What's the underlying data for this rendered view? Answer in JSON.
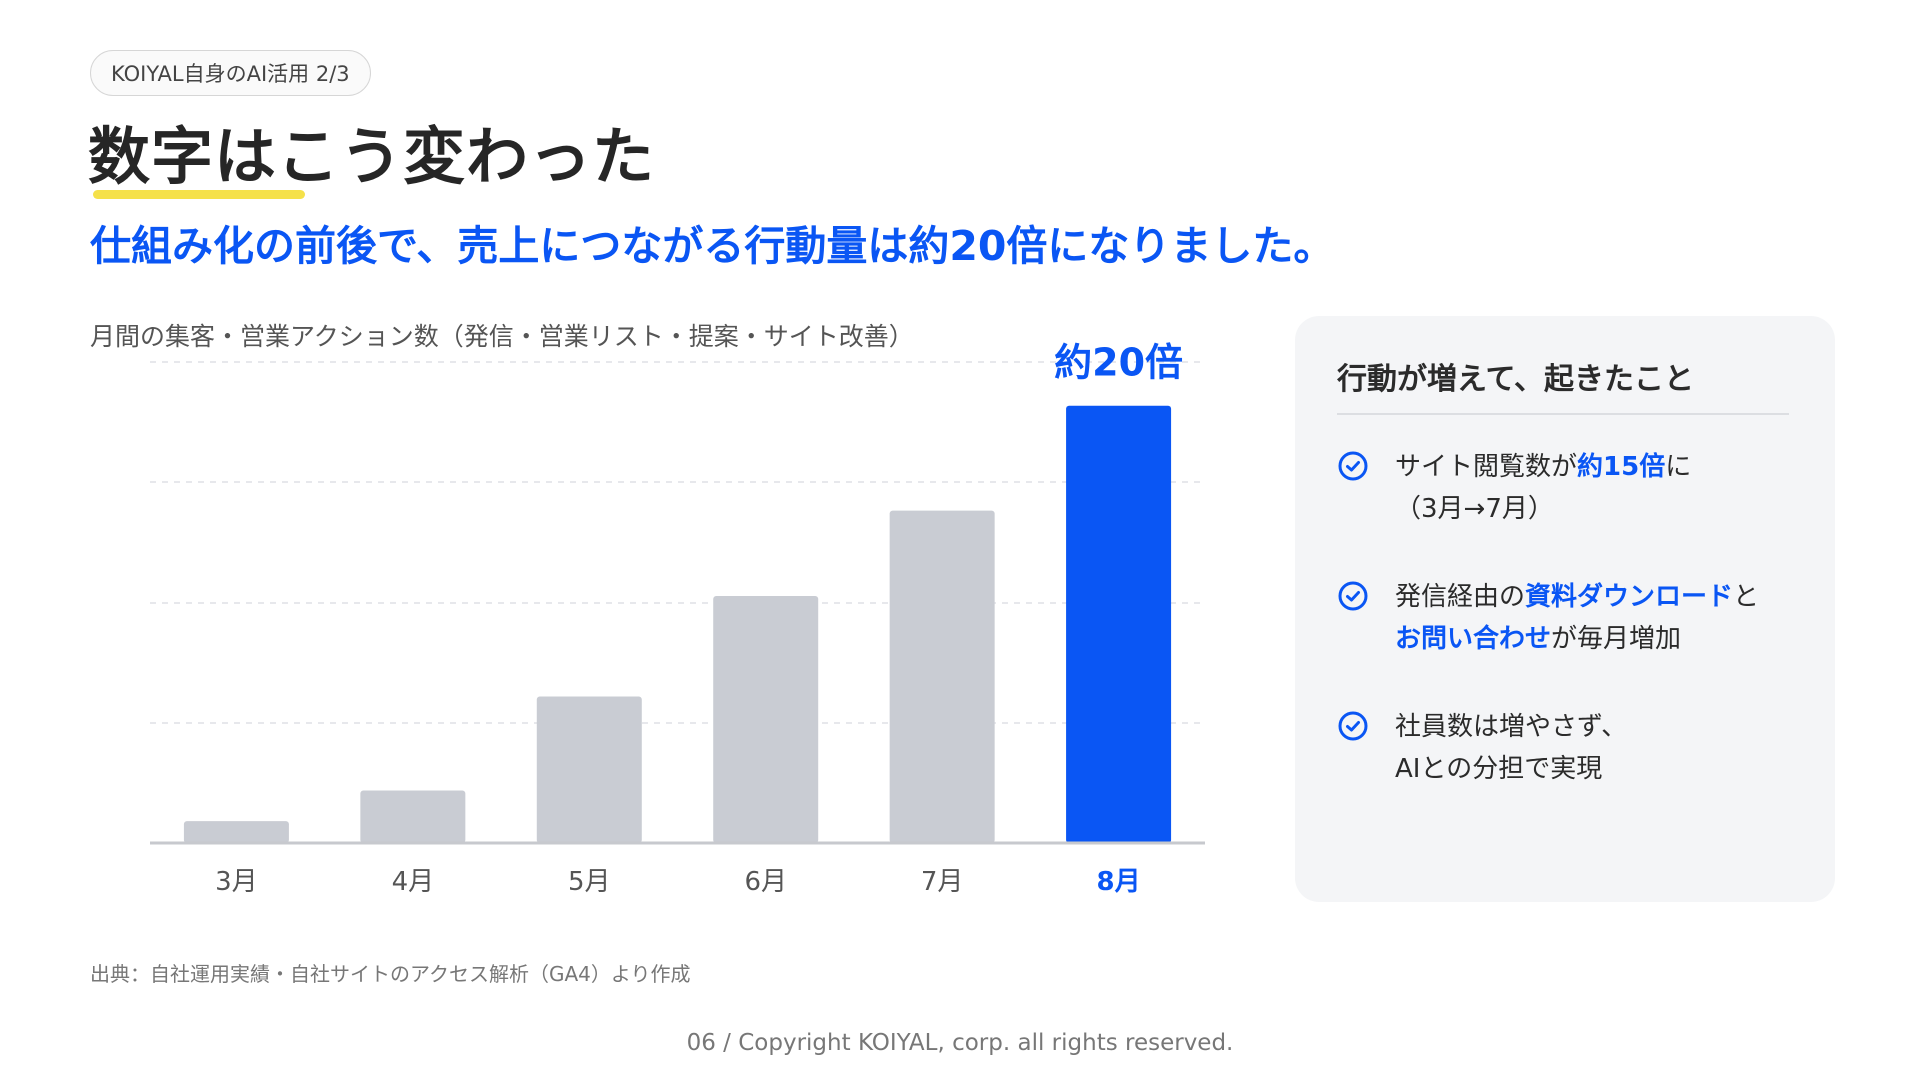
{
  "header": {
    "badge": "KOIYAL自身のAI活用 2/3",
    "title": "数字はこう変わった",
    "subtitle": "仕組み化の前後で、売上につながる行動量は約20倍になりました。"
  },
  "chart_heading": "月間の集客・営業アクション数（発信・営業リスト・提案・サイト改善）",
  "chart_data": {
    "type": "bar",
    "title": "月間の集客・営業アクション数（発信・営業リスト・提案・サイト改善）",
    "categories": [
      "3月",
      "4月",
      "5月",
      "6月",
      "7月",
      "8月"
    ],
    "values": [
      1,
      2.4,
      6.7,
      11.3,
      15.2,
      20
    ],
    "highlight_index": 5,
    "annotation": "約20倍",
    "ylim": [
      0,
      22
    ],
    "grid": true,
    "xlabel": "",
    "ylabel": "",
    "colors": {
      "bar": "#c9ccd3",
      "highlight": "#0a56f4",
      "grid": "#dfe1e5",
      "axis": "#c7c9ce"
    }
  },
  "panel": {
    "title": "行動が増えて、起きたこと",
    "items": [
      {
        "lines": [
          [
            {
              "t": "サイト閲覧数が",
              "h": false
            },
            {
              "t": "約15倍",
              "h": true
            },
            {
              "t": "に",
              "h": false
            }
          ],
          [
            {
              "t": "（3月→7月）",
              "h": false
            }
          ]
        ]
      },
      {
        "lines": [
          [
            {
              "t": "発信経由の",
              "h": false
            },
            {
              "t": "資料ダウンロード",
              "h": true
            },
            {
              "t": "と",
              "h": false
            }
          ],
          [
            {
              "t": "お問い合わせ",
              "h": true
            },
            {
              "t": "が毎月増加",
              "h": false
            }
          ]
        ]
      },
      {
        "lines": [
          [
            {
              "t": "社員数は増やさず、",
              "h": false
            }
          ],
          [
            {
              "t": "AIとの分担で実現",
              "h": false
            }
          ]
        ]
      }
    ],
    "icon": "check-circle-icon",
    "accent": "#0a56f4"
  },
  "source": "出典：自社運用実績・自社サイトのアクセス解析（GA4）より作成",
  "footer": "06 / Copyright KOIYAL, corp. all rights reserved."
}
